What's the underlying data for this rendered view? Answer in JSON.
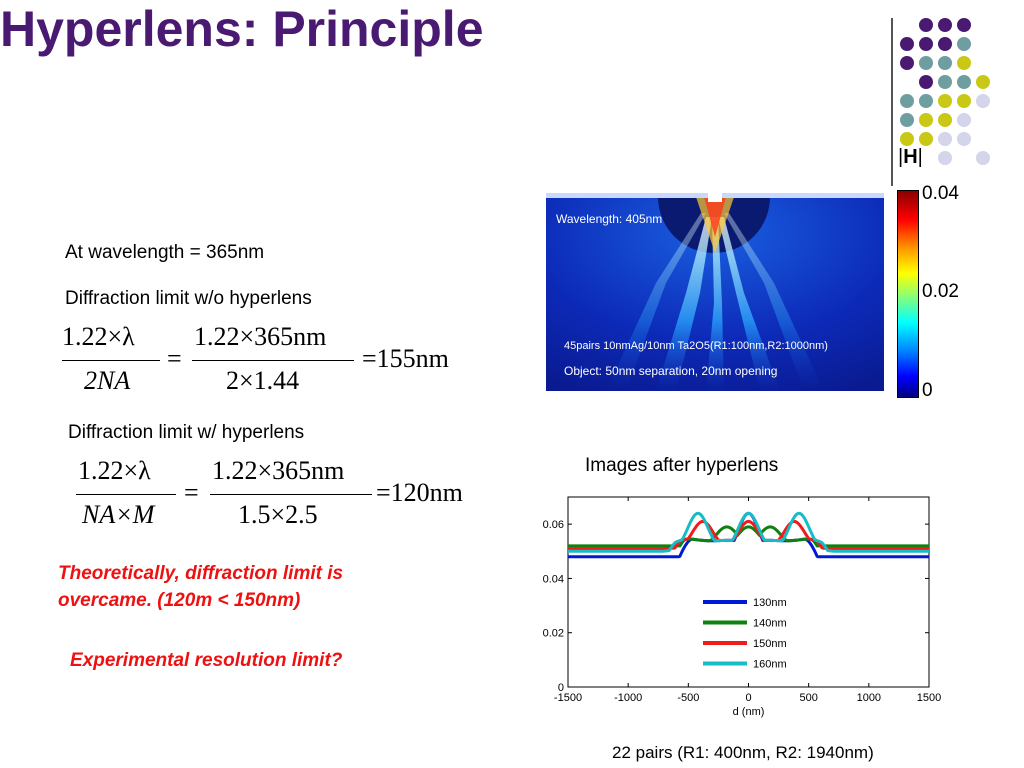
{
  "title": "Hyperlens: Principle",
  "text": {
    "wavelength_line": "At wavelength = 365nm",
    "diff_wo": "Diffraction limit w/o hyperlens",
    "diff_w": "Diffraction limit w/ hyperlens",
    "theory_line1": "Theoretically, diffraction limit is",
    "theory_line2": "overcame. (120m < 150nm)",
    "experimental": "Experimental resolution limit?",
    "images_after": "Images after hyperlens",
    "pairs_caption": "22 pairs (R1: 400nm, R2: 1940nm)"
  },
  "equations": {
    "eq1": {
      "lhs_num": "1.22×λ",
      "lhs_den": "2NA",
      "rhs_num": "1.22×365nm",
      "rhs_den": "2×1.44",
      "result": "=155nm"
    },
    "eq2": {
      "lhs_num": "1.22×λ",
      "lhs_den": "NA×M",
      "rhs_num": "1.22×365nm",
      "rhs_den": "1.5×2.5",
      "result": "=120nm"
    }
  },
  "simulation": {
    "wavelength_label": "Wavelength: 405nm",
    "pairs_label": "45pairs 10nmAg/10nm Ta2O5(R1:100nm,R2:1000nm)",
    "object_label": "Object: 50nm separation, 20nm opening"
  },
  "colorbar": {
    "header": "|H|",
    "max": "0.04",
    "mid": "0.02",
    "min": "0"
  },
  "decor_colors": {
    "purple": "#4a1a72",
    "teal": "#6f9ea0",
    "yellow": "#c8c815",
    "lavender": "#d4d4ea"
  },
  "chart_data": {
    "type": "line",
    "xlabel": "d (nm)",
    "ylabel": "",
    "xlim": [
      -1500,
      1500
    ],
    "ylim": [
      0,
      0.07
    ],
    "xticks": [
      "-1500",
      "-1000",
      "-500",
      "0",
      "500",
      "1000",
      "1500"
    ],
    "yticks": [
      "0",
      "0.02",
      "0.04",
      "0.06"
    ],
    "legend_position": "lower-right",
    "series": [
      {
        "name": "130nm",
        "color": "#0018d8",
        "peaks": [
          0
        ],
        "peak_height": 0.064,
        "shoulder_pos": 470,
        "shoulder_height": 0.048,
        "dip": 0.048
      },
      {
        "name": "140nm",
        "color": "#108010",
        "peaks": [
          -180,
          0,
          180
        ],
        "peak_height": 0.059,
        "shoulder_pos": 520,
        "shoulder_height": 0.051,
        "dip": 0.052
      },
      {
        "name": "150nm",
        "color": "#ee1c1c",
        "peaks": [
          -380,
          0,
          380
        ],
        "peak_height": 0.061,
        "shoulder_pos": 560,
        "shoulder_height": 0.055,
        "dip": 0.051
      },
      {
        "name": "160nm",
        "color": "#17bcc4",
        "peaks": [
          -420,
          0,
          420
        ],
        "peak_height": 0.064,
        "shoulder_pos": 600,
        "shoulder_height": 0.057,
        "dip": 0.05
      }
    ]
  }
}
